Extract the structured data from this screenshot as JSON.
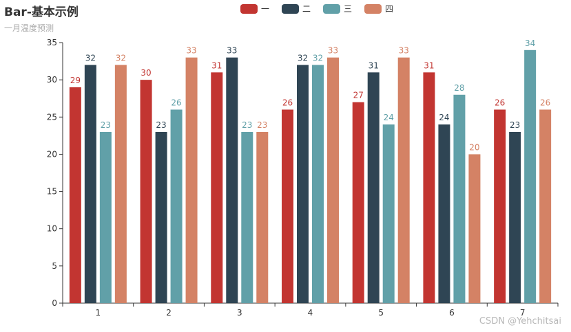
{
  "chart_data": {
    "type": "bar",
    "title": "Bar-基本示例",
    "subtitle": "一月温度预测",
    "categories": [
      "1",
      "2",
      "3",
      "4",
      "5",
      "6",
      "7"
    ],
    "series": [
      {
        "name": "一",
        "color": "#c23531",
        "values": [
          29,
          30,
          31,
          26,
          27,
          31,
          26
        ]
      },
      {
        "name": "二",
        "color": "#2f4554",
        "values": [
          32,
          23,
          33,
          32,
          31,
          24,
          23
        ]
      },
      {
        "name": "三",
        "color": "#61a0a8",
        "values": [
          23,
          26,
          23,
          32,
          24,
          28,
          34
        ]
      },
      {
        "name": "四",
        "color": "#d48265",
        "values": [
          32,
          33,
          23,
          33,
          33,
          20,
          26
        ]
      }
    ],
    "ylim": [
      0,
      35
    ],
    "yticks": [
      0,
      5,
      10,
      15,
      20,
      25,
      30,
      35
    ],
    "xlabel": "",
    "ylabel": "",
    "grid": false,
    "legend_position": "top-center",
    "data_labels": true
  },
  "watermark": "CSDN @Yehchitsai"
}
